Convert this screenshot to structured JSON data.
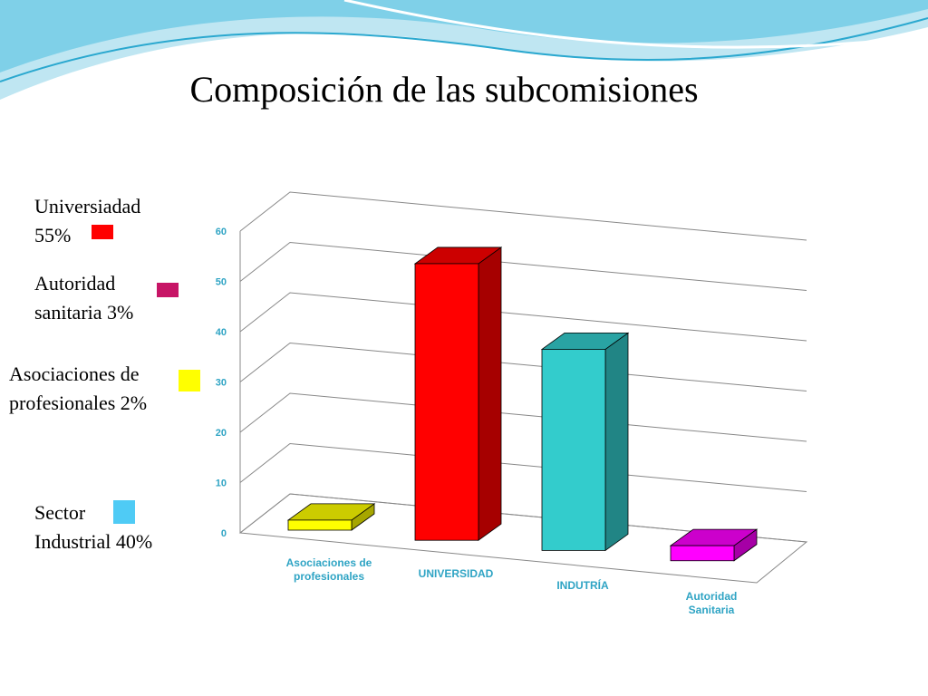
{
  "title": "Composición de las subcomisiones",
  "notes": [
    {
      "lines": [
        "Universiadad",
        "55%"
      ],
      "color": "#ff0000"
    },
    {
      "lines": [
        "Autoridad",
        "sanitaria 3%"
      ],
      "color": "#c71566"
    },
    {
      "lines": [
        "Asociaciones de",
        "profesionales 2%"
      ],
      "color": "#ffff00"
    },
    {
      "lines": [
        "Sector",
        "Industrial   40%"
      ],
      "color": "#4fcbf5"
    }
  ],
  "chart_data": {
    "type": "bar3d",
    "categories": [
      [
        "Asociaciones de",
        "profesionales"
      ],
      [
        "UNIVERSIDAD"
      ],
      [
        "INDUTRÍA"
      ],
      [
        "Autoridad",
        "Sanitaria"
      ]
    ],
    "values": [
      2,
      55,
      40,
      3
    ],
    "colors": [
      "#ffff00",
      "#ff0000",
      "#33cccc",
      "#ff00ff"
    ],
    "ylim": [
      0,
      60
    ],
    "yticks": [
      0,
      10,
      20,
      30,
      40,
      50,
      60
    ],
    "grid": true
  }
}
